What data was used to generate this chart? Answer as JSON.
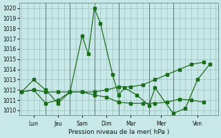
{
  "xlabel": "Pression niveau de la mer( hPa )",
  "background_color": "#c8e8e8",
  "plot_bg_color": "#c8e8e8",
  "grid_color": "#9bbfbf",
  "line_color": "#1a6b1a",
  "ylim": [
    1009.5,
    1020.5
  ],
  "yticks": [
    1010,
    1011,
    1012,
    1013,
    1014,
    1015,
    1016,
    1017,
    1018,
    1019,
    1020
  ],
  "ytick_fontsize": 5.5,
  "xtick_fontsize": 5.5,
  "xlabel_fontsize": 6.5,
  "day_labels": [
    "Lun",
    "Jeu",
    "Sam",
    "Dim",
    "Mar",
    "Mer",
    "Ven"
  ],
  "day_positions": [
    0.5,
    1.5,
    2.5,
    3.5,
    4.5,
    5.75,
    7.25
  ],
  "vline_positions": [
    1,
    2,
    3,
    4,
    5.25,
    6.25
  ],
  "xlim": [
    -0.1,
    8.1
  ],
  "series1_x": [
    0,
    0.5,
    1.0,
    1.5,
    2.0,
    2.5,
    2.75,
    3.0,
    3.25,
    3.75,
    4.0,
    4.25,
    4.75,
    5.25,
    5.5,
    6.25,
    6.75,
    7.25,
    7.75
  ],
  "series1_y": [
    1011.8,
    1013.0,
    1012.0,
    1010.7,
    1011.8,
    1017.3,
    1015.5,
    1020.0,
    1018.5,
    1013.5,
    1011.5,
    1012.2,
    1011.5,
    1010.5,
    1012.2,
    1009.7,
    1010.2,
    1013.0,
    1014.5
  ],
  "series2_x": [
    0,
    0.5,
    1.0,
    1.5,
    2.0,
    2.5,
    3.0,
    3.5,
    4.0,
    4.5,
    5.0,
    5.5,
    6.0,
    6.5,
    7.0,
    7.5
  ],
  "series2_y": [
    1011.8,
    1012.0,
    1010.7,
    1011.0,
    1011.8,
    1011.8,
    1011.5,
    1011.3,
    1010.8,
    1010.7,
    1010.7,
    1010.7,
    1010.8,
    1011.1,
    1011.0,
    1010.8
  ],
  "series3_x": [
    0,
    0.5,
    1.0,
    1.5,
    2.0,
    2.5,
    3.0,
    3.5,
    4.0,
    4.5,
    5.0,
    5.5,
    6.0,
    6.5,
    7.0,
    7.5
  ],
  "series3_y": [
    1011.8,
    1012.0,
    1011.8,
    1011.8,
    1011.8,
    1011.8,
    1011.8,
    1012.0,
    1012.3,
    1012.3,
    1012.5,
    1013.0,
    1013.5,
    1014.0,
    1014.5,
    1014.7
  ]
}
